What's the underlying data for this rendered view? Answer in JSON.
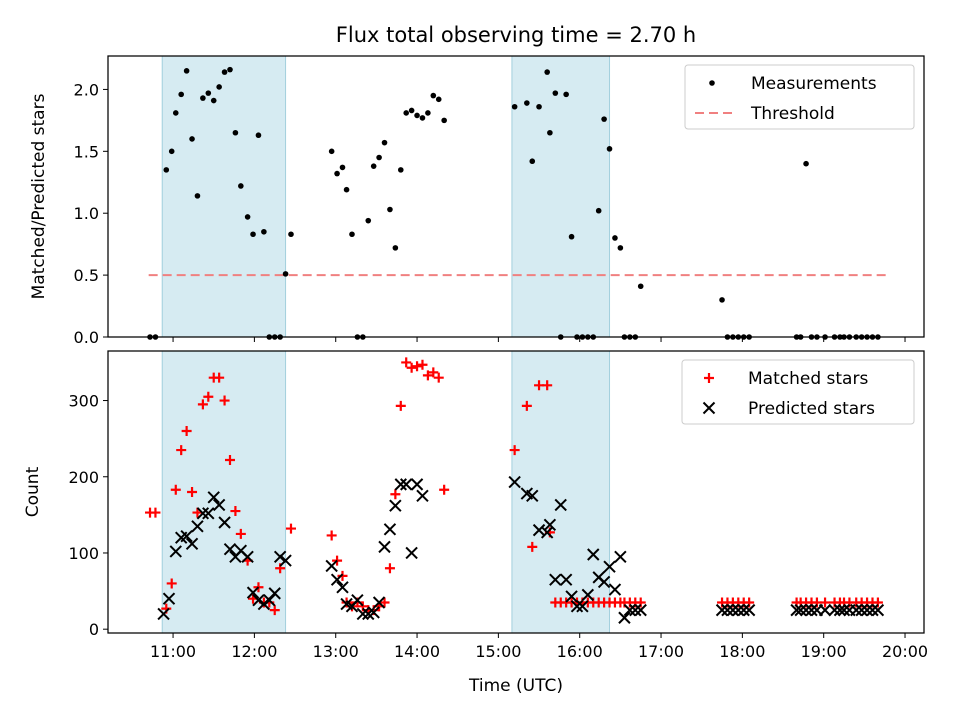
{
  "title": "Flux total observing time = 2.70 h",
  "chart_data": [
    {
      "type": "scatter",
      "ylabel": "Matched/Predicted stars",
      "xlim": [
        "10:12",
        "20:14"
      ],
      "ylim": [
        0,
        2.27
      ],
      "yticks": [
        0.0,
        0.5,
        1.0,
        1.5,
        2.0
      ],
      "yticklabels": [
        "0.0",
        "0.5",
        "1.0",
        "1.5",
        "2.0"
      ],
      "shaded_intervals": [
        [
          "10:52",
          "12:23"
        ],
        [
          "15:10",
          "16:22"
        ]
      ],
      "legend": {
        "placement": "top-right",
        "entries": [
          "Measurements",
          "Threshold"
        ]
      },
      "threshold": {
        "name": "Threshold",
        "value": 0.5,
        "x_range": [
          "10:42",
          "19:47"
        ],
        "color": "#f08080",
        "style": "dashed"
      },
      "series": [
        {
          "name": "Measurements",
          "marker": "dot",
          "color": "#000000",
          "x": [
            "10:43",
            "10:47",
            "10:55",
            "10:59",
            "11:02",
            "11:06",
            "11:10",
            "11:14",
            "11:18",
            "11:22",
            "11:26",
            "11:30",
            "11:34",
            "11:38",
            "11:42",
            "11:46",
            "11:50",
            "11:55",
            "11:59",
            "12:03",
            "12:07",
            "12:11",
            "12:15",
            "12:19",
            "12:23",
            "12:27",
            "12:57",
            "13:01",
            "13:05",
            "13:08",
            "13:12",
            "13:16",
            "13:20",
            "13:24",
            "13:28",
            "13:32",
            "13:36",
            "13:40",
            "13:44",
            "13:48",
            "13:52",
            "13:56",
            "14:00",
            "14:04",
            "14:08",
            "14:12",
            "14:16",
            "14:20",
            "15:12",
            "15:21",
            "15:25",
            "15:30",
            "15:36",
            "15:38",
            "15:42",
            "15:46",
            "15:50",
            "15:54",
            "15:58",
            "16:02",
            "16:06",
            "16:10",
            "16:14",
            "16:18",
            "16:22",
            "16:26",
            "16:30",
            "16:33",
            "16:37",
            "16:41",
            "16:45",
            "17:45",
            "17:49",
            "17:53",
            "17:57",
            "18:01",
            "18:05",
            "18:40",
            "18:43",
            "18:47",
            "18:51",
            "18:55",
            "19:01",
            "19:08",
            "19:12",
            "19:15",
            "19:19",
            "19:24",
            "19:28",
            "19:32",
            "19:36",
            "19:40"
          ],
          "y": [
            0,
            0,
            1.35,
            1.5,
            1.81,
            1.96,
            2.15,
            1.6,
            1.14,
            1.93,
            1.97,
            1.91,
            2.02,
            2.14,
            2.16,
            1.65,
            1.22,
            0.97,
            0.83,
            1.63,
            0.85,
            0,
            0,
            0,
            0.51,
            0.83,
            1.5,
            1.32,
            1.37,
            1.19,
            0.83,
            0,
            0,
            0.94,
            1.38,
            1.45,
            1.57,
            1.03,
            0.72,
            1.35,
            1.81,
            1.83,
            1.79,
            1.77,
            1.81,
            1.95,
            1.92,
            1.75,
            1.86,
            1.89,
            1.42,
            1.86,
            2.14,
            1.65,
            1.97,
            0,
            1.96,
            0.81,
            0,
            0,
            0,
            0,
            1.02,
            1.76,
            1.52,
            0.8,
            0.72,
            0,
            0,
            0,
            0.41,
            0.3,
            0,
            0,
            0,
            0,
            0,
            0,
            0,
            1.4,
            0,
            0,
            0,
            0,
            0,
            0,
            0,
            0,
            0,
            0,
            0,
            0
          ]
        }
      ]
    },
    {
      "type": "scatter",
      "xlabel": "Time (UTC)",
      "ylabel": "Count",
      "xlim": [
        "10:12",
        "20:14"
      ],
      "ylim": [
        -5,
        365
      ],
      "yticks": [
        0,
        100,
        200,
        300
      ],
      "xticks": [
        "11:00",
        "12:00",
        "13:00",
        "14:00",
        "15:00",
        "16:00",
        "17:00",
        "18:00",
        "19:00",
        "20:00"
      ],
      "shaded_intervals": [
        [
          "10:52",
          "12:23"
        ],
        [
          "15:10",
          "16:22"
        ]
      ],
      "legend": {
        "placement": "top-right",
        "entries": [
          "Matched stars",
          "Predicted stars"
        ]
      },
      "series": [
        {
          "name": "Matched stars",
          "marker": "plus",
          "color": "#ff0000",
          "x": [
            "10:43",
            "10:47",
            "10:55",
            "10:59",
            "11:02",
            "11:06",
            "11:10",
            "11:14",
            "11:18",
            "11:22",
            "11:26",
            "11:30",
            "11:34",
            "11:38",
            "11:42",
            "11:46",
            "11:50",
            "11:55",
            "11:59",
            "12:03",
            "12:07",
            "12:11",
            "12:15",
            "12:19",
            "12:27",
            "12:57",
            "13:01",
            "13:05",
            "13:08",
            "13:12",
            "13:16",
            "13:20",
            "13:24",
            "13:28",
            "13:32",
            "13:36",
            "13:40",
            "13:44",
            "13:48",
            "13:52",
            "13:56",
            "14:00",
            "14:04",
            "14:08",
            "14:12",
            "14:16",
            "14:20",
            "15:12",
            "15:21",
            "15:25",
            "15:30",
            "15:36",
            "15:38",
            "15:42",
            "15:46",
            "15:50",
            "15:54",
            "15:58",
            "16:02",
            "16:06",
            "16:10",
            "16:14",
            "16:18",
            "16:22",
            "16:26",
            "16:30",
            "16:33",
            "16:37",
            "16:41",
            "16:45",
            "17:45",
            "17:49",
            "17:53",
            "17:57",
            "18:01",
            "18:05",
            "18:40",
            "18:43",
            "18:47",
            "18:51",
            "18:55",
            "19:01",
            "19:08",
            "19:12",
            "19:15",
            "19:19",
            "19:24",
            "19:28",
            "19:32",
            "19:36",
            "19:40"
          ],
          "y": [
            153,
            153,
            27,
            60,
            183,
            235,
            260,
            180,
            153,
            295,
            305,
            330,
            330,
            300,
            222,
            155,
            125,
            90,
            40,
            55,
            35,
            35,
            25,
            80,
            132,
            123,
            90,
            70,
            35,
            30,
            35,
            30,
            25,
            25,
            30,
            35,
            80,
            177,
            293,
            350,
            343,
            345,
            347,
            333,
            337,
            330,
            183,
            235,
            293,
            108,
            320,
            320,
            127,
            35,
            35,
            35,
            35,
            35,
            35,
            35,
            35,
            35,
            35,
            35,
            35,
            35,
            35,
            35,
            35,
            35,
            35,
            35,
            35,
            35,
            35,
            35,
            35,
            35,
            35,
            35,
            35,
            35,
            35,
            35,
            35,
            35,
            35,
            35,
            35,
            35,
            35
          ],
          "y_note": "Matched counts per observation"
        },
        {
          "name": "Predicted stars",
          "marker": "x",
          "color": "#000000",
          "x": [
            "10:53",
            "10:57",
            "11:02",
            "11:06",
            "11:10",
            "11:14",
            "11:18",
            "11:22",
            "11:26",
            "11:30",
            "11:34",
            "11:38",
            "11:42",
            "11:46",
            "11:50",
            "11:55",
            "11:59",
            "12:03",
            "12:07",
            "12:11",
            "12:15",
            "12:19",
            "12:23",
            "12:57",
            "13:01",
            "13:05",
            "13:08",
            "13:12",
            "13:16",
            "13:20",
            "13:24",
            "13:28",
            "13:32",
            "13:36",
            "13:40",
            "13:44",
            "13:48",
            "13:52",
            "13:56",
            "14:00",
            "14:04",
            "15:12",
            "15:21",
            "15:25",
            "15:30",
            "15:36",
            "15:38",
            "15:42",
            "15:46",
            "15:50",
            "15:54",
            "15:58",
            "16:02",
            "16:06",
            "16:10",
            "16:14",
            "16:18",
            "16:22",
            "16:26",
            "16:30",
            "16:33",
            "16:37",
            "16:41",
            "16:45",
            "17:45",
            "17:49",
            "17:53",
            "17:57",
            "18:01",
            "18:05",
            "18:40",
            "18:43",
            "18:47",
            "18:51",
            "18:55",
            "19:01",
            "19:08",
            "19:12",
            "19:15",
            "19:19",
            "19:24",
            "19:28",
            "19:32",
            "19:36",
            "19:40"
          ],
          "y": [
            20,
            40,
            102,
            120,
            122,
            112,
            135,
            152,
            152,
            173,
            163,
            140,
            105,
            95,
            103,
            95,
            48,
            38,
            33,
            38,
            47,
            95,
            90,
            83,
            65,
            55,
            33,
            30,
            38,
            20,
            20,
            22,
            35,
            108,
            131,
            162,
            190,
            190,
            100,
            190,
            175,
            193,
            178,
            175,
            130,
            127,
            137,
            65,
            163,
            65,
            43,
            30,
            30,
            45,
            98,
            68,
            62,
            82,
            52,
            95,
            15,
            25,
            25,
            25,
            25,
            25,
            25,
            25,
            25,
            25,
            25,
            25,
            25,
            25,
            25,
            25,
            25,
            25,
            25,
            25,
            25,
            25,
            25,
            25,
            25
          ]
        }
      ]
    }
  ]
}
